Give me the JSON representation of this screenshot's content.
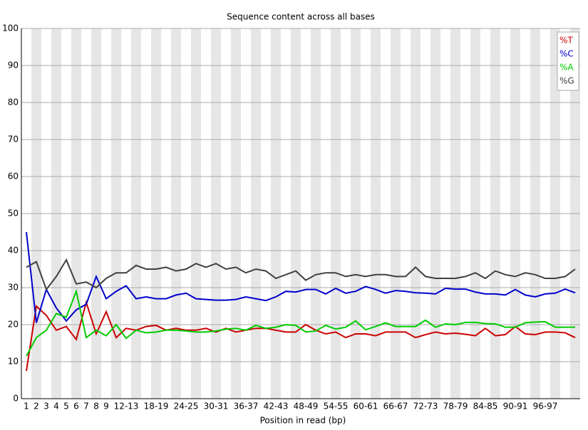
{
  "chart_data": {
    "type": "line",
    "title": "Sequence content across all bases",
    "x_label": "Position in read (bp)",
    "categories": [
      "1",
      "2",
      "3",
      "4",
      "5",
      "6",
      "7",
      "8",
      "9",
      null,
      "12-13",
      null,
      null,
      "18-19",
      null,
      null,
      "24-25",
      null,
      null,
      "30-31",
      null,
      null,
      "36-37",
      null,
      null,
      "42-43",
      null,
      null,
      "48-49",
      null,
      null,
      "54-55",
      null,
      null,
      "60-61",
      null,
      null,
      "66-67",
      null,
      null,
      "72-73",
      null,
      null,
      "78-79",
      null,
      null,
      "84-85",
      null,
      null,
      "90-91",
      null,
      null,
      "96-97",
      null,
      null,
      null
    ],
    "series": [
      {
        "name": "%T",
        "color": "#cc0000",
        "values": [
          7.5,
          25,
          22.5,
          18.5,
          19.5,
          16,
          26,
          17.5,
          23.5,
          16.5,
          19,
          18.5,
          19.5,
          19.8,
          18.5,
          19,
          18.5,
          18.5,
          19,
          18,
          19,
          18,
          18.5,
          19,
          19,
          18.5,
          18,
          18,
          20,
          18.5,
          17.5,
          18,
          16.5,
          17.5,
          17.5,
          17,
          18,
          18,
          18,
          16.5,
          17.3,
          18,
          17.5,
          17.7,
          17.4,
          17,
          19,
          17,
          17.3,
          19.5,
          17.5,
          17.3,
          18,
          18,
          17.8,
          16.5
        ]
      },
      {
        "name": "%C",
        "color": "#0000cc",
        "values": [
          45,
          20.5,
          29.5,
          24.5,
          21,
          24,
          25.5,
          33,
          27,
          29,
          30.5,
          27,
          27.5,
          27,
          27,
          28,
          28.5,
          27,
          26.8,
          26.6,
          26.6,
          26.8,
          27.5,
          27,
          26.5,
          27.5,
          29,
          28.8,
          29.5,
          29.5,
          28.3,
          29.8,
          28.5,
          29,
          30.3,
          29.5,
          28.5,
          29.2,
          29,
          28.6,
          28.5,
          28.3,
          29.8,
          29.6,
          29.6,
          28.8,
          28.3,
          28.3,
          28,
          29.5,
          28,
          27.5,
          28.3,
          28.5,
          29.6,
          28.6
        ]
      },
      {
        "name": "%A",
        "color": "#00cc00",
        "values": [
          11.5,
          16.5,
          18.5,
          23,
          22,
          29,
          16.5,
          18.5,
          17,
          20,
          16.3,
          18.5,
          17.8,
          18,
          18.5,
          18.5,
          18.3,
          18,
          18,
          18.3,
          18.8,
          19,
          18.5,
          19.8,
          19,
          19.3,
          20,
          19.8,
          18,
          18.3,
          19.8,
          18.8,
          19.3,
          21,
          18.6,
          19.5,
          20.5,
          19.5,
          19.5,
          19.5,
          21.2,
          19.3,
          20.2,
          20,
          20.6,
          20.6,
          20.3,
          20.2,
          19.3,
          19.3,
          20.5,
          20.7,
          20.8,
          19.3,
          19.3,
          19.3
        ]
      },
      {
        "name": "%G",
        "color": "#404040",
        "values": [
          35.5,
          37,
          29.5,
          33,
          37.5,
          31,
          31.5,
          30,
          32.5,
          34,
          34,
          36,
          35,
          35,
          35.5,
          34.5,
          35,
          36.5,
          35.5,
          36.5,
          35,
          35.5,
          34,
          35,
          34.5,
          32.5,
          33.5,
          34.5,
          32,
          33.5,
          34,
          34,
          33,
          33.5,
          33,
          33.5,
          33.5,
          33,
          33,
          35.5,
          33,
          32.5,
          32.5,
          32.5,
          33,
          34,
          32.5,
          34.5,
          33.5,
          33,
          34,
          33.5,
          32.5,
          32.5,
          33,
          35
        ]
      }
    ],
    "ylim": [
      0,
      100
    ],
    "yticks": [
      0,
      10,
      20,
      30,
      40,
      50,
      60,
      70,
      80,
      90,
      100
    ],
    "grid": true,
    "legend": "upper right"
  }
}
